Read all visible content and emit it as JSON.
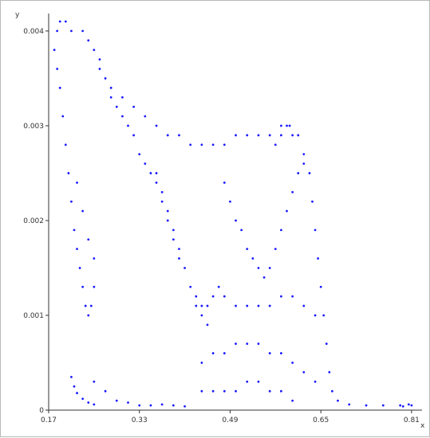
{
  "chart_data": {
    "type": "scatter",
    "title": "",
    "xlabel": "x",
    "ylabel": "y",
    "xlim": [
      0.17,
      0.82
    ],
    "ylim": [
      0,
      0.0041
    ],
    "grid": false,
    "point_color": "#1a1aff",
    "x_ticks": [
      {
        "value": 0.17,
        "label": "0.17"
      },
      {
        "value": 0.33,
        "label": "0.33"
      },
      {
        "value": 0.49,
        "label": "0.49"
      },
      {
        "value": 0.65,
        "label": "0.65"
      },
      {
        "value": 0.81,
        "label": "0.81"
      }
    ],
    "y_ticks": [
      {
        "value": 0,
        "label": "0"
      },
      {
        "value": 0.001,
        "label": "0.001"
      },
      {
        "value": 0.002,
        "label": "0.002"
      },
      {
        "value": 0.003,
        "label": "0.003"
      },
      {
        "value": 0.004,
        "label": "0.004"
      }
    ],
    "series": [
      {
        "points": [
          [
            0.185,
            0.004
          ],
          [
            0.19,
            0.0041
          ],
          [
            0.2,
            0.0041
          ],
          [
            0.21,
            0.004
          ],
          [
            0.18,
            0.0038
          ],
          [
            0.185,
            0.0036
          ],
          [
            0.19,
            0.0034
          ],
          [
            0.195,
            0.0031
          ],
          [
            0.2,
            0.0028
          ],
          [
            0.205,
            0.0025
          ],
          [
            0.21,
            0.0022
          ],
          [
            0.215,
            0.0019
          ],
          [
            0.22,
            0.0017
          ],
          [
            0.225,
            0.0015
          ],
          [
            0.23,
            0.0013
          ],
          [
            0.235,
            0.0011
          ],
          [
            0.24,
            0.001
          ],
          [
            0.22,
            0.0024
          ],
          [
            0.23,
            0.0021
          ],
          [
            0.24,
            0.0018
          ],
          [
            0.25,
            0.0016
          ],
          [
            0.25,
            0.0013
          ],
          [
            0.245,
            0.0011
          ],
          [
            0.23,
            0.004
          ],
          [
            0.24,
            0.0039
          ],
          [
            0.25,
            0.0038
          ],
          [
            0.26,
            0.0037
          ],
          [
            0.27,
            0.0035
          ],
          [
            0.28,
            0.0033
          ],
          [
            0.29,
            0.0032
          ],
          [
            0.3,
            0.0031
          ],
          [
            0.31,
            0.003
          ],
          [
            0.32,
            0.0029
          ],
          [
            0.33,
            0.0027
          ],
          [
            0.34,
            0.0026
          ],
          [
            0.35,
            0.0025
          ],
          [
            0.36,
            0.0024
          ],
          [
            0.37,
            0.0022
          ],
          [
            0.38,
            0.002
          ],
          [
            0.39,
            0.0018
          ],
          [
            0.4,
            0.0016
          ],
          [
            0.26,
            0.0036
          ],
          [
            0.28,
            0.0034
          ],
          [
            0.3,
            0.0033
          ],
          [
            0.32,
            0.0032
          ],
          [
            0.34,
            0.0031
          ],
          [
            0.36,
            0.003
          ],
          [
            0.38,
            0.0029
          ],
          [
            0.4,
            0.0029
          ],
          [
            0.42,
            0.0028
          ],
          [
            0.44,
            0.0028
          ],
          [
            0.46,
            0.0028
          ],
          [
            0.48,
            0.0028
          ],
          [
            0.5,
            0.0029
          ],
          [
            0.52,
            0.0029
          ],
          [
            0.54,
            0.0029
          ],
          [
            0.56,
            0.0029
          ],
          [
            0.58,
            0.003
          ],
          [
            0.59,
            0.003
          ],
          [
            0.6,
            0.0029
          ],
          [
            0.57,
            0.0028
          ],
          [
            0.58,
            0.0029
          ],
          [
            0.595,
            0.003
          ],
          [
            0.61,
            0.0029
          ],
          [
            0.62,
            0.0027
          ],
          [
            0.63,
            0.0025
          ],
          [
            0.635,
            0.0022
          ],
          [
            0.64,
            0.0019
          ],
          [
            0.645,
            0.0016
          ],
          [
            0.65,
            0.0013
          ],
          [
            0.655,
            0.001
          ],
          [
            0.66,
            0.0007
          ],
          [
            0.665,
            0.0004
          ],
          [
            0.67,
            0.0002
          ],
          [
            0.68,
            0.0001
          ],
          [
            0.7,
            6e-05
          ],
          [
            0.73,
            5e-05
          ],
          [
            0.76,
            5e-05
          ],
          [
            0.79,
            5e-05
          ],
          [
            0.81,
            5e-05
          ],
          [
            0.805,
            6e-05
          ],
          [
            0.795,
            4e-05
          ],
          [
            0.36,
            0.0025
          ],
          [
            0.37,
            0.0023
          ],
          [
            0.38,
            0.0021
          ],
          [
            0.39,
            0.0019
          ],
          [
            0.4,
            0.0017
          ],
          [
            0.41,
            0.0015
          ],
          [
            0.42,
            0.0013
          ],
          [
            0.43,
            0.0011
          ],
          [
            0.44,
            0.001
          ],
          [
            0.45,
            0.0009
          ],
          [
            0.48,
            0.0024
          ],
          [
            0.49,
            0.0022
          ],
          [
            0.5,
            0.002
          ],
          [
            0.51,
            0.0019
          ],
          [
            0.52,
            0.0017
          ],
          [
            0.53,
            0.0016
          ],
          [
            0.54,
            0.0015
          ],
          [
            0.55,
            0.0014
          ],
          [
            0.56,
            0.0015
          ],
          [
            0.57,
            0.0017
          ],
          [
            0.58,
            0.0019
          ],
          [
            0.59,
            0.0021
          ],
          [
            0.6,
            0.0023
          ],
          [
            0.61,
            0.0025
          ],
          [
            0.62,
            0.0026
          ],
          [
            0.43,
            0.0012
          ],
          [
            0.44,
            0.0011
          ],
          [
            0.45,
            0.0011
          ],
          [
            0.46,
            0.0012
          ],
          [
            0.47,
            0.0013
          ],
          [
            0.48,
            0.0012
          ],
          [
            0.5,
            0.0011
          ],
          [
            0.52,
            0.0011
          ],
          [
            0.54,
            0.0011
          ],
          [
            0.56,
            0.0011
          ],
          [
            0.58,
            0.0012
          ],
          [
            0.6,
            0.0012
          ],
          [
            0.62,
            0.0011
          ],
          [
            0.64,
            0.001
          ],
          [
            0.44,
            0.0005
          ],
          [
            0.46,
            0.0006
          ],
          [
            0.48,
            0.0006
          ],
          [
            0.5,
            0.0007
          ],
          [
            0.52,
            0.0007
          ],
          [
            0.54,
            0.0007
          ],
          [
            0.56,
            0.0006
          ],
          [
            0.58,
            0.0006
          ],
          [
            0.6,
            0.0005
          ],
          [
            0.62,
            0.0004
          ],
          [
            0.64,
            0.0003
          ],
          [
            0.44,
            0.0002
          ],
          [
            0.46,
            0.0002
          ],
          [
            0.48,
            0.0002
          ],
          [
            0.5,
            0.0002
          ],
          [
            0.52,
            0.0003
          ],
          [
            0.54,
            0.0003
          ],
          [
            0.56,
            0.0002
          ],
          [
            0.58,
            0.0002
          ],
          [
            0.6,
            0.0001
          ],
          [
            0.25,
            0.0003
          ],
          [
            0.27,
            0.0002
          ],
          [
            0.29,
            0.0001
          ],
          [
            0.31,
            8e-05
          ],
          [
            0.33,
            5e-05
          ],
          [
            0.35,
            5e-05
          ],
          [
            0.37,
            6e-05
          ],
          [
            0.39,
            5e-05
          ],
          [
            0.41,
            4e-05
          ],
          [
            0.21,
            0.00035
          ],
          [
            0.215,
            0.00025
          ],
          [
            0.22,
            0.00018
          ],
          [
            0.23,
            0.00012
          ],
          [
            0.24,
            8e-05
          ],
          [
            0.25,
            6e-05
          ]
        ]
      }
    ]
  }
}
